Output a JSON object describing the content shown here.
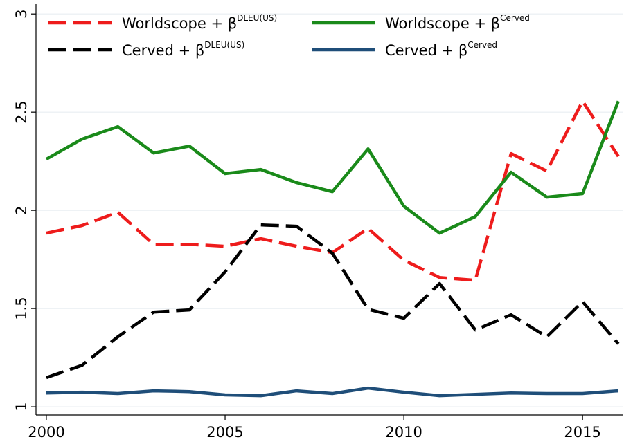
{
  "chart_data": {
    "type": "line",
    "x": [
      2000,
      2001,
      2002,
      2003,
      2004,
      2005,
      2006,
      2007,
      2008,
      2009,
      2010,
      2011,
      2012,
      2013,
      2014,
      2015,
      2016
    ],
    "series": [
      {
        "name": "Worldscope + β",
        "name_sup": "DLEU(US)",
        "color": "#ee1c1c",
        "dashed": true,
        "values": [
          1.884,
          1.923,
          1.99,
          1.827,
          1.827,
          1.817,
          1.856,
          1.817,
          1.785,
          1.908,
          1.746,
          1.658,
          1.644,
          2.289,
          2.2,
          2.556,
          2.275
        ]
      },
      {
        "name": "Worldscope + β",
        "name_sup": "Cerved",
        "color": "#1a8a1a",
        "dashed": false,
        "values": [
          2.261,
          2.363,
          2.426,
          2.292,
          2.327,
          2.187,
          2.208,
          2.141,
          2.095,
          2.313,
          2.021,
          1.884,
          1.968,
          2.194,
          2.067,
          2.085,
          2.556
        ]
      },
      {
        "name": "Cerved + β",
        "name_sup": "DLEU(US)",
        "color": "#000000",
        "dashed": true,
        "values": [
          1.148,
          1.211,
          1.356,
          1.482,
          1.493,
          1.687,
          1.926,
          1.919,
          1.782,
          1.496,
          1.451,
          1.627,
          1.391,
          1.468,
          1.356,
          1.535,
          1.32
        ]
      },
      {
        "name": "Cerved + β",
        "name_sup": "Cerved",
        "color": "#1f4e79",
        "dashed": false,
        "values": [
          1.07,
          1.074,
          1.067,
          1.081,
          1.077,
          1.06,
          1.056,
          1.081,
          1.067,
          1.095,
          1.074,
          1.056,
          1.063,
          1.07,
          1.067,
          1.067,
          1.081
        ]
      }
    ],
    "xlim": [
      1999.71,
      2016.14
    ],
    "xticks": [
      2000,
      2005,
      2010,
      2015
    ],
    "ylim": [
      0.958,
      3.05
    ],
    "yticks": [
      1,
      1.5,
      2,
      2.5,
      3
    ],
    "grid": true
  }
}
